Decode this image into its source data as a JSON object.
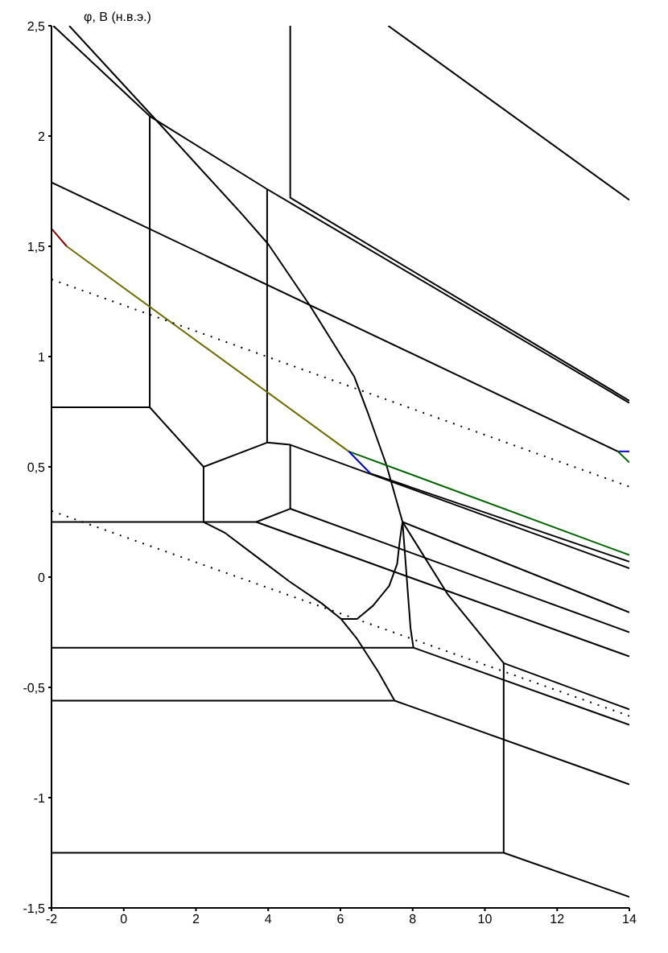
{
  "chart_data": {
    "type": "line",
    "ylabel": "φ, В (н.в.э.)",
    "xlim": [
      -2,
      14
    ],
    "ylim": [
      -1.5,
      2.5
    ],
    "xticks": [
      -2,
      0,
      2,
      4,
      6,
      8,
      10,
      12,
      14
    ],
    "yticks": [
      {
        "value": 2.5,
        "label": "2,5"
      },
      2,
      {
        "value": 1.5,
        "label": "1,5"
      },
      1,
      {
        "value": 0.5,
        "label": "0,5"
      },
      0,
      {
        "value": -0.5,
        "label": "-0,5"
      },
      -1,
      {
        "value": -1.5,
        "label": "-1,5"
      }
    ],
    "line_style": "solid",
    "series": [
      {
        "color": "#000000",
        "x": [
          7.32,
          14
        ],
        "values": [
          2.5,
          1.71
        ]
      },
      {
        "color": "#000000",
        "x": [
          -1.95,
          0.72,
          3.96,
          14
        ],
        "values": [
          2.5,
          2.09,
          1.76,
          0.79
        ]
      },
      {
        "color": "#000000",
        "x": [
          4.61,
          4.61,
          14
        ],
        "values": [
          2.5,
          1.72,
          0.8
        ]
      },
      {
        "color": "#000000",
        "x": [
          -1.51,
          1.02,
          3.25,
          4.0,
          5.12,
          6.38,
          6.77,
          7.27,
          7.72,
          8.98,
          9.73,
          10.52
        ],
        "values": [
          2.5,
          2.05,
          1.65,
          1.51,
          1.24,
          0.91,
          0.74,
          0.51,
          0.25,
          -0.08,
          -0.23,
          -0.39
        ]
      },
      {
        "color": "#000000",
        "x": [
          -2,
          0.72,
          0.72
        ],
        "values": [
          0.77,
          0.77,
          2.09
        ]
      },
      {
        "color": "#000000",
        "x": [
          0.72,
          2.21,
          3.97,
          4.61,
          14
        ],
        "values": [
          0.77,
          0.5,
          0.61,
          0.6,
          0.04
        ]
      },
      {
        "color": "#000000",
        "x": [
          3.97,
          3.97
        ],
        "values": [
          0.61,
          1.76
        ]
      },
      {
        "color": "#000000",
        "x": [
          -2,
          13.68
        ],
        "values": [
          1.79,
          0.57
        ]
      },
      {
        "color": "#000000",
        "x": [
          -2,
          2.21,
          3.67,
          4.61,
          14
        ],
        "values": [
          0.25,
          0.25,
          0.25,
          0.31,
          -0.25
        ]
      },
      {
        "color": "#000000",
        "x": [
          2.21,
          2.21
        ],
        "values": [
          0.25,
          0.5
        ]
      },
      {
        "color": "#000000",
        "x": [
          4.61,
          4.61
        ],
        "values": [
          0.31,
          0.6
        ]
      },
      {
        "color": "#000000",
        "x": [
          3.67,
          14
        ],
        "values": [
          0.25,
          -0.36
        ]
      },
      {
        "color": "#000000",
        "x": [
          2.21,
          2.81,
          3.7,
          4.59,
          5.49,
          6.02,
          6.46,
          7.05,
          7.5
        ],
        "values": [
          0.25,
          0.2,
          0.09,
          -0.02,
          -0.12,
          -0.19,
          -0.28,
          -0.43,
          -0.56
        ]
      },
      {
        "color": "#000000",
        "x": [
          6.02,
          6.46,
          6.9,
          7.35,
          7.57,
          7.64,
          7.69,
          7.72
        ],
        "values": [
          -0.19,
          -0.19,
          -0.13,
          -0.04,
          0.06,
          0.16,
          0.22,
          0.25
        ]
      },
      {
        "color": "#000000",
        "x": [
          7.72,
          7.94,
          8.02
        ],
        "values": [
          0.25,
          -0.23,
          -0.32
        ]
      },
      {
        "color": "#000000",
        "x": [
          -2,
          8.02,
          14
        ],
        "values": [
          -0.32,
          -0.32,
          -0.67
        ]
      },
      {
        "color": "#000000",
        "x": [
          -2,
          7.5,
          14
        ],
        "values": [
          -0.56,
          -0.56,
          -0.94
        ]
      },
      {
        "color": "#000000",
        "x": [
          14,
          10.52,
          10.52
        ],
        "values": [
          -0.6,
          -0.39,
          -1.25
        ]
      },
      {
        "color": "#000000",
        "x": [
          -2,
          10.52,
          14
        ],
        "values": [
          -1.25,
          -1.25,
          -1.45
        ]
      },
      {
        "color": "#000000",
        "x": [
          7.72,
          14
        ],
        "values": [
          0.25,
          -0.16
        ]
      },
      {
        "color": "#000000",
        "x": [
          6.83,
          14
        ],
        "values": [
          0.47,
          0.07
        ]
      },
      {
        "color": "#8b0000",
        "x": [
          -2,
          -1.58
        ],
        "values": [
          1.58,
          1.5
        ]
      },
      {
        "color": "#6b6b00",
        "x": [
          -1.58,
          6.23
        ],
        "values": [
          1.5,
          0.57
        ]
      },
      {
        "color": "#006400",
        "x": [
          6.23,
          14
        ],
        "values": [
          0.57,
          0.1
        ]
      },
      {
        "color": "#0000cc",
        "x": [
          6.23,
          6.83
        ],
        "values": [
          0.57,
          0.47
        ]
      },
      {
        "color": "#0000cc",
        "x": [
          13.68,
          14
        ],
        "values": [
          0.57,
          0.57
        ]
      },
      {
        "color": "#006400",
        "x": [
          13.68,
          14
        ],
        "values": [
          0.57,
          0.52
        ]
      },
      {
        "color": "#000000",
        "line_style": "dotted",
        "x": [
          -2,
          14
        ],
        "values": [
          1.35,
          0.41
        ]
      },
      {
        "color": "#000000",
        "line_style": "dotted",
        "x": [
          -2,
          14
        ],
        "values": [
          0.3,
          -0.63
        ]
      }
    ]
  }
}
